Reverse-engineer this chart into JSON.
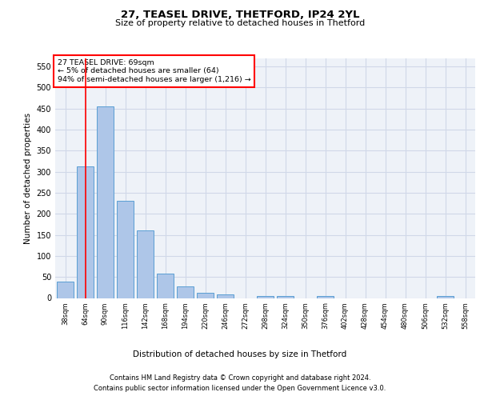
{
  "title1": "27, TEASEL DRIVE, THETFORD, IP24 2YL",
  "title2": "Size of property relative to detached houses in Thetford",
  "xlabel": "Distribution of detached houses by size in Thetford",
  "ylabel": "Number of detached properties",
  "footer1": "Contains HM Land Registry data © Crown copyright and database right 2024.",
  "footer2": "Contains public sector information licensed under the Open Government Licence v3.0.",
  "annotation_title": "27 TEASEL DRIVE: 69sqm",
  "annotation_line2": "← 5% of detached houses are smaller (64)",
  "annotation_line3": "94% of semi-detached houses are larger (1,216) →",
  "bar_labels": [
    "38sqm",
    "64sqm",
    "90sqm",
    "116sqm",
    "142sqm",
    "168sqm",
    "194sqm",
    "220sqm",
    "246sqm",
    "272sqm",
    "298sqm",
    "324sqm",
    "350sqm",
    "376sqm",
    "402sqm",
    "428sqm",
    "454sqm",
    "480sqm",
    "506sqm",
    "532sqm",
    "558sqm"
  ],
  "bar_values": [
    39,
    312,
    455,
    230,
    160,
    58,
    27,
    13,
    9,
    0,
    5,
    5,
    0,
    4,
    0,
    0,
    0,
    0,
    0,
    4,
    0
  ],
  "bar_color": "#aec6e8",
  "bar_edge_color": "#5a9fd4",
  "grid_color": "#d0d8e8",
  "bg_color": "#eef2f8",
  "red_line_x": 1,
  "ylim": [
    0,
    570
  ],
  "yticks": [
    0,
    50,
    100,
    150,
    200,
    250,
    300,
    350,
    400,
    450,
    500,
    550
  ]
}
